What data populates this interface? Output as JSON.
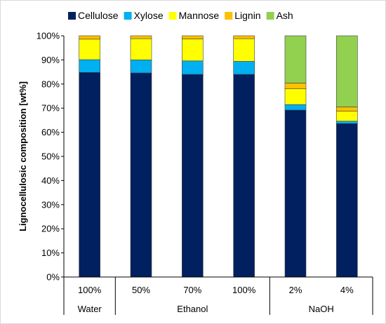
{
  "chart_data": {
    "type": "bar",
    "stacked": true,
    "title": "",
    "xlabel": "",
    "ylabel": "Lignocellulosic composition [wt%]",
    "ylim": [
      0,
      100
    ],
    "y_ticks": [
      "0%",
      "10%",
      "20%",
      "30%",
      "40%",
      "50%",
      "60%",
      "70%",
      "80%",
      "90%",
      "100%"
    ],
    "grid": false,
    "legend": "top",
    "categories": [
      "100%",
      "50%",
      "70%",
      "100%",
      "2%",
      "4%"
    ],
    "groups": [
      {
        "label": "Water",
        "count": 1
      },
      {
        "label": "Ethanol",
        "count": 3
      },
      {
        "label": "NaOH",
        "count": 2
      }
    ],
    "series": [
      {
        "name": "Cellulose",
        "color": "#002060",
        "values": [
          84.8,
          84.6,
          84.0,
          84.0,
          69.2,
          63.6
        ]
      },
      {
        "name": "Xylose",
        "color": "#00B0F0",
        "values": [
          5.3,
          5.4,
          5.6,
          5.4,
          2.3,
          1.0
        ]
      },
      {
        "name": "Mannose",
        "color": "#FFFF00",
        "values": [
          8.5,
          8.8,
          9.1,
          9.4,
          6.5,
          4.1
        ]
      },
      {
        "name": "Lignin",
        "color": "#FFC000",
        "values": [
          1.4,
          1.2,
          1.3,
          1.2,
          2.4,
          1.8
        ]
      },
      {
        "name": "Ash",
        "color": "#92D050",
        "values": [
          0.0,
          0.0,
          0.0,
          0.0,
          19.6,
          29.5
        ]
      }
    ]
  }
}
